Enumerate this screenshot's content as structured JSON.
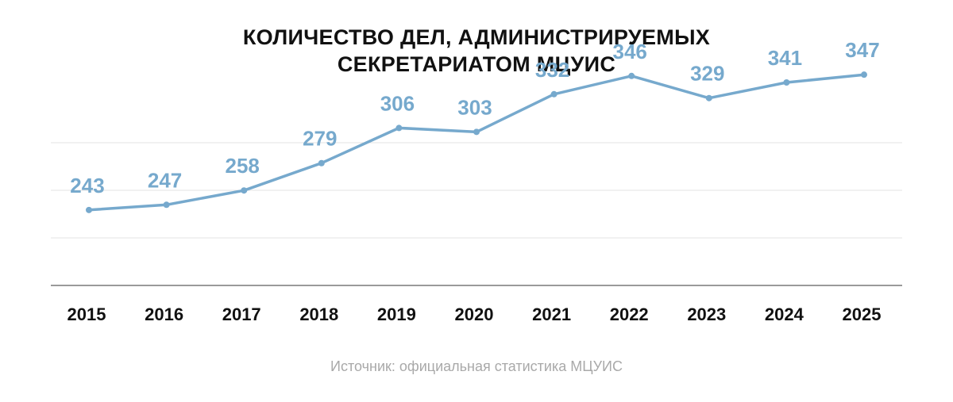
{
  "title_lines": [
    "КОЛИЧЕСТВО ДЕЛ, АДМИНИСТРИРУЕМЫХ",
    "СЕКРЕТАРИАТОМ МЦУИС"
  ],
  "source": "Источник: официальная статистика МЦУИС",
  "colors": {
    "line": "#76a9cd",
    "grid": "#e3e3e3",
    "axis": "#9a9a9a",
    "label": "#76a9cd",
    "tick": "#111111"
  },
  "chart_data": {
    "type": "line",
    "title": "КОЛИЧЕСТВО ДЕЛ, АДМИНИСТРИРУЕМЫХ СЕКРЕТАРИАТОМ МЦУИС",
    "categories": [
      "2015",
      "2016",
      "2017",
      "2018",
      "2019",
      "2020",
      "2021",
      "2022",
      "2023",
      "2024",
      "2025"
    ],
    "series": [
      {
        "values": [
          243,
          247,
          258,
          279,
          306,
          303,
          332,
          346,
          329,
          341,
          347
        ]
      }
    ],
    "data_labels": true,
    "xlabel": "",
    "ylabel": "",
    "ylim": [
      185,
      380
    ],
    "grid": true,
    "legend": "none"
  }
}
